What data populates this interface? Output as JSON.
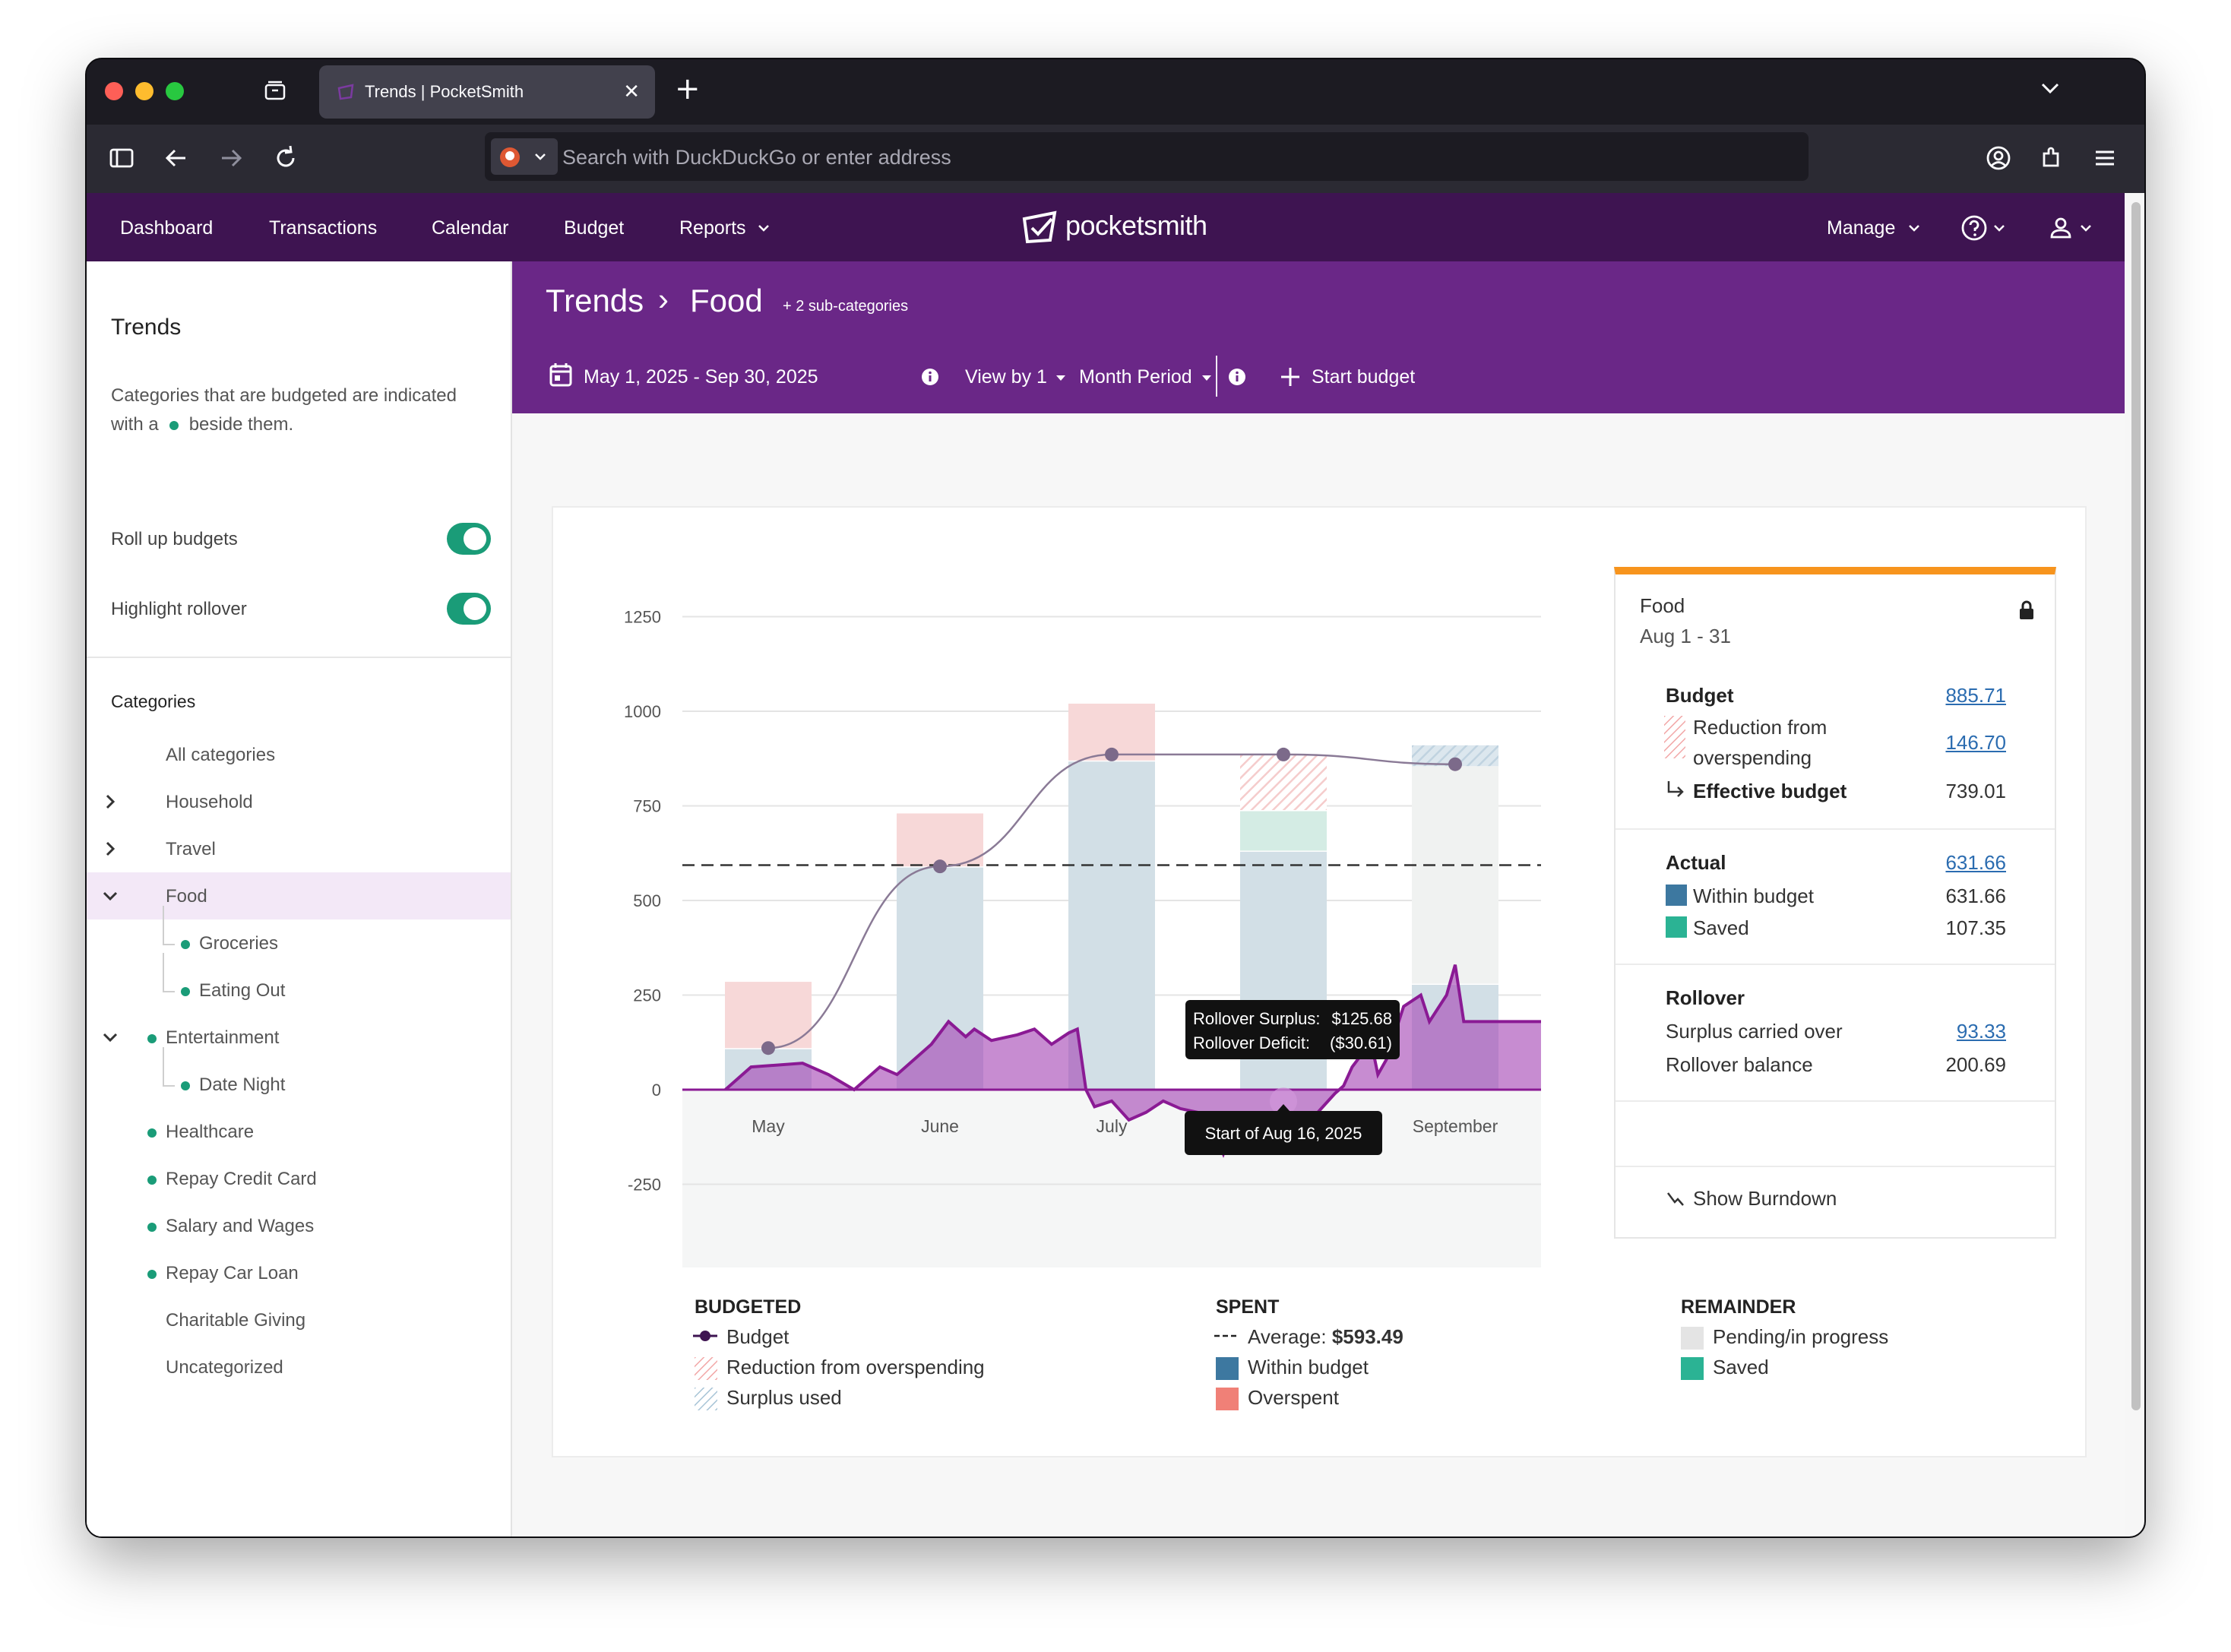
{
  "browser": {
    "tab_title": "Trends | PocketSmith",
    "tab_close": "✕",
    "new_tab": "+",
    "url_placeholder": "Search with DuckDuckGo or enter address"
  },
  "topnav": {
    "items": [
      "Dashboard",
      "Transactions",
      "Calendar",
      "Budget",
      "Reports"
    ],
    "logo": "pocketsmith",
    "manage": "Manage",
    "colors": {
      "bar": "#3e1451",
      "header": "#6a2787"
    }
  },
  "sidebar": {
    "title": "Trends",
    "desc_before": "Categories that are budgeted are indicated with a",
    "desc_after": "beside them.",
    "toggles": [
      {
        "label": "Roll up budgets",
        "on": true
      },
      {
        "label": "Highlight rollover",
        "on": true
      }
    ],
    "categories_heading": "Categories",
    "categories": [
      {
        "label": "All categories",
        "expand": "",
        "dot": false,
        "indent": 0
      },
      {
        "label": "Household",
        "expand": "collapsed",
        "dot": false,
        "indent": 0
      },
      {
        "label": "Travel",
        "expand": "collapsed",
        "dot": false,
        "indent": 0
      },
      {
        "label": "Food",
        "expand": "expanded",
        "dot": false,
        "indent": 0,
        "active": true
      },
      {
        "label": "Groceries",
        "expand": "",
        "dot": true,
        "indent": 1
      },
      {
        "label": "Eating Out",
        "expand": "",
        "dot": true,
        "indent": 1
      },
      {
        "label": "Entertainment",
        "expand": "expanded",
        "dot": true,
        "indent": 0
      },
      {
        "label": "Date Night",
        "expand": "",
        "dot": true,
        "indent": 1
      },
      {
        "label": "Healthcare",
        "expand": "",
        "dot": true,
        "indent": 0
      },
      {
        "label": "Repay Credit Card",
        "expand": "",
        "dot": true,
        "indent": 0
      },
      {
        "label": "Salary and Wages",
        "expand": "",
        "dot": true,
        "indent": 0
      },
      {
        "label": "Repay Car Loan",
        "expand": "",
        "dot": true,
        "indent": 0
      },
      {
        "label": "Charitable Giving",
        "expand": "",
        "dot": false,
        "indent": 0
      },
      {
        "label": "Uncategorized",
        "expand": "",
        "dot": false,
        "indent": 0
      }
    ]
  },
  "header": {
    "crumb_root": "Trends",
    "crumb_sep": "›",
    "crumb_current": "Food",
    "sub_categories": "+ 2 sub-categories",
    "date_range": "May 1, 2025 - Sep 30, 2025",
    "view_by": "View by 1",
    "period": "Month Period",
    "start_budget": "Start budget"
  },
  "chart_data": {
    "type": "bar",
    "categories": [
      "May",
      "June",
      "July",
      "August",
      "September"
    ],
    "x_tick_labels": [
      "May",
      "June",
      "July",
      "",
      "September"
    ],
    "y_ticks": [
      "1250",
      "1000",
      "750",
      "500",
      "250",
      "0",
      "-250",
      "-500"
    ],
    "ylim": [
      -500,
      1250
    ],
    "series": [
      {
        "name": "Within budget",
        "values": [
          110,
          590,
          870,
          631.66,
          280
        ],
        "color": "#d2dfe6"
      },
      {
        "name": "Overspent",
        "values": [
          175,
          140,
          150,
          0,
          0
        ],
        "color": "#f7d8d8"
      },
      {
        "name": "Saved",
        "values": [
          0,
          0,
          0,
          107.35,
          0
        ],
        "color": "#d4ece4"
      },
      {
        "name": "Pending/in progress",
        "values": [
          0,
          0,
          0,
          0,
          575
        ],
        "color": "#f0f2f1"
      }
    ],
    "reduction_hatch_top": [
      0,
      0,
      880,
      885.71,
      0
    ],
    "surplus_hatch": [
      0,
      0,
      0,
      0,
      55
    ],
    "budget_line": [
      110,
      590,
      885.71,
      885.71,
      860
    ],
    "average_line": 593.49,
    "rollover_points": [
      [
        0.25,
        0
      ],
      [
        0.4,
        60
      ],
      [
        0.7,
        70
      ],
      [
        0.85,
        40
      ],
      [
        1.0,
        0
      ],
      [
        1.15,
        60
      ],
      [
        1.25,
        40
      ],
      [
        1.45,
        120
      ],
      [
        1.55,
        180
      ],
      [
        1.65,
        140
      ],
      [
        1.7,
        160
      ],
      [
        1.8,
        130
      ],
      [
        1.95,
        145
      ],
      [
        2.05,
        160
      ],
      [
        2.15,
        120
      ],
      [
        2.25,
        150
      ],
      [
        2.3,
        160
      ],
      [
        2.35,
        0
      ],
      [
        2.4,
        -45
      ],
      [
        2.5,
        -30
      ],
      [
        2.6,
        -80
      ],
      [
        2.7,
        -60
      ],
      [
        2.8,
        -30
      ],
      [
        2.9,
        -50
      ],
      [
        3.0,
        -60
      ],
      [
        3.05,
        -140
      ],
      [
        3.1,
        -120
      ],
      [
        3.15,
        -170
      ],
      [
        3.2,
        -110
      ],
      [
        3.3,
        -140
      ],
      [
        3.4,
        -100
      ],
      [
        3.5,
        -110
      ],
      [
        3.6,
        -70
      ],
      [
        3.7,
        -60
      ],
      [
        3.8,
        -10
      ],
      [
        3.85,
        10
      ],
      [
        3.9,
        60
      ],
      [
        3.95,
        90
      ],
      [
        4.0,
        150
      ],
      [
        4.05,
        40
      ],
      [
        4.1,
        80
      ],
      [
        4.2,
        220
      ],
      [
        4.3,
        250
      ],
      [
        4.35,
        180
      ],
      [
        4.45,
        250
      ],
      [
        4.5,
        330
      ],
      [
        4.55,
        180
      ],
      [
        5.0,
        180
      ]
    ],
    "tooltip": {
      "surplus_label": "Rollover Surplus:",
      "surplus_value": "$125.68",
      "deficit_label": "Rollover Deficit:",
      "deficit_value": "($30.61)"
    },
    "x_tooltip": "Start of Aug 16, 2025"
  },
  "panel": {
    "title": "Food",
    "period": "Aug 1 - 31",
    "budget_label": "Budget",
    "budget_value": "885.71",
    "reduction_label_1": "Reduction from",
    "reduction_label_2": "overspending",
    "reduction_value": "146.70",
    "effective_label": "Effective budget",
    "effective_value": "739.01",
    "actual_label": "Actual",
    "actual_value": "631.66",
    "within_label": "Within budget",
    "within_value": "631.66",
    "saved_label": "Saved",
    "saved_value": "107.35",
    "rollover_label": "Rollover",
    "surplus_label": "Surplus carried over",
    "surplus_value": "93.33",
    "rollover_balance_label": "Rollover balance",
    "rollover_balance_value": "200.69",
    "show_burndown": "Show Burndown",
    "accent": "#f7941d"
  },
  "legend": {
    "budgeted_heading": "BUDGETED",
    "budgeted": [
      "Budget",
      "Reduction from overspending",
      "Surplus used"
    ],
    "spent_heading": "SPENT",
    "average_label": "Average:",
    "average_value": "$593.49",
    "spent": [
      "Within budget",
      "Overspent"
    ],
    "remainder_heading": "REMAINDER",
    "remainder": [
      "Pending/in progress",
      "Saved"
    ],
    "colors": {
      "within": "#3d78a0",
      "overspent": "#f08077",
      "pending": "#e4e4e4",
      "saved": "#2bb394"
    }
  }
}
